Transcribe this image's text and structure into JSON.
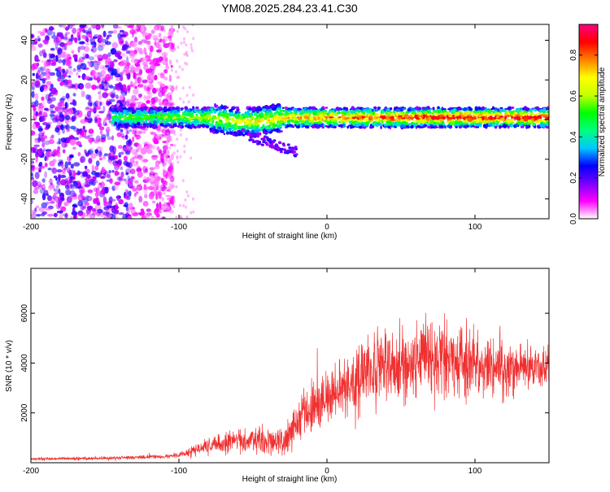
{
  "title": "YM08.2025.284.23.41.C30",
  "chart_data": [
    {
      "type": "heatmap",
      "xlabel": "Height of straight line (km)",
      "ylabel": "Frequency (Hz)",
      "xlim": [
        -200,
        150
      ],
      "ylim": [
        -50,
        48
      ],
      "xticks": [
        -200,
        -100,
        0,
        100
      ],
      "yticks": [
        -40,
        -20,
        0,
        20,
        40
      ],
      "colorbar": {
        "label": "Normalized spectral amplitude",
        "range": [
          0,
          0.95
        ],
        "ticks": [
          0.0,
          0.2,
          0.4,
          0.6,
          0.8
        ],
        "tick_labels": [
          "0.0",
          "0.2",
          "0.4",
          "0.6",
          "0.8"
        ],
        "colormap": [
          "#ffffff",
          "#ff00ff",
          "#7a00ff",
          "#0000ff",
          "#00c8ff",
          "#00ff80",
          "#00ff00",
          "#c8ff00",
          "#ffff00",
          "#ff8000",
          "#ff0000",
          "#ff0080"
        ]
      },
      "description_of_signal": {
        "noise_region_km": [
          -200,
          -110
        ],
        "band_center_hz": 0,
        "band_halfwidth_hz": 5,
        "band_start_km": -145,
        "dispersion_tail_km": [
          -80,
          -30
        ]
      }
    },
    {
      "type": "line",
      "xlabel": "Height of straight line (km)",
      "ylabel": "SNR (10 * v/v)",
      "xlim": [
        -200,
        150
      ],
      "ylim": [
        0,
        7800
      ],
      "xticks": [
        -200,
        -100,
        0,
        100
      ],
      "yticks": [
        2000,
        4000,
        6000
      ],
      "color": "#f03030",
      "envelope": {
        "x": [
          -200,
          -150,
          -110,
          -100,
          -90,
          -80,
          -60,
          -40,
          -30,
          -20,
          -10,
          0,
          10,
          20,
          30,
          40,
          50,
          60,
          70,
          80,
          90,
          100,
          110,
          120,
          130,
          150
        ],
        "mean": [
          150,
          180,
          250,
          300,
          500,
          700,
          900,
          900,
          800,
          1600,
          2200,
          2600,
          3000,
          3400,
          3700,
          3900,
          4000,
          4100,
          4100,
          4100,
          4000,
          3900,
          3800,
          3800,
          3800,
          3800
        ],
        "spread": [
          80,
          100,
          120,
          150,
          300,
          500,
          700,
          800,
          800,
          1200,
          1500,
          1700,
          1800,
          1900,
          2000,
          2100,
          2200,
          2300,
          2300,
          2200,
          2100,
          2000,
          1800,
          1600,
          1400,
          1200
        ]
      }
    }
  ]
}
